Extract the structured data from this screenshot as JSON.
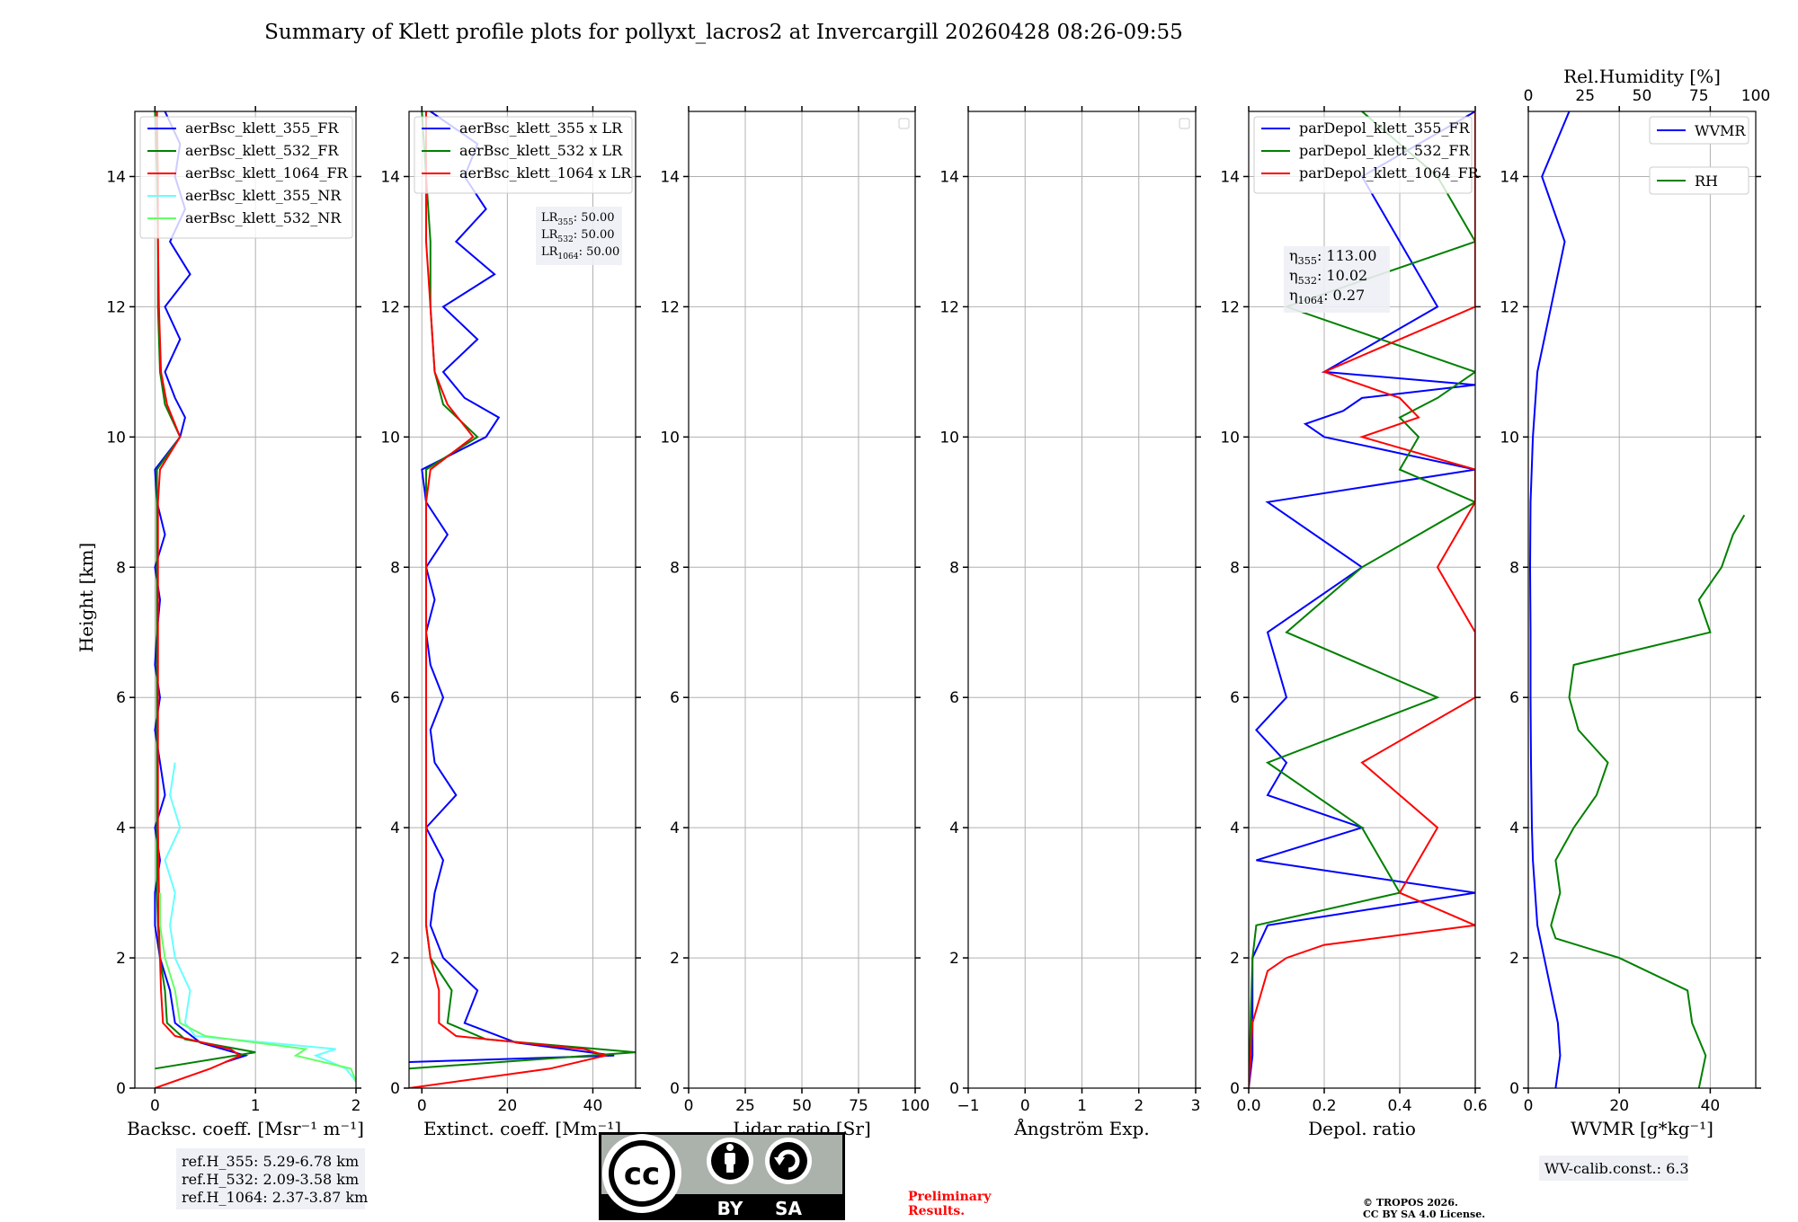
{
  "chart_data": {
    "type": "line",
    "title": "Summary of Klett profile plots for pollyxt_lacros2 at Invercargill 20260428 08:26-09:55",
    "ylabel": "Height [km]",
    "ylim": [
      0,
      15
    ],
    "yticks": [
      0,
      2,
      4,
      6,
      8,
      10,
      12,
      14
    ],
    "panels": [
      {
        "id": "backscatter",
        "xlabel": "Backsc. coeff. [Msr⁻¹ m⁻¹]",
        "xlim": [
          -0.2,
          2
        ],
        "xticks": [
          0,
          1,
          2
        ],
        "legend_position": "upper-left",
        "series": [
          {
            "name": "aerBsc_klett_355_FR",
            "color": "#0000ff",
            "h": [
              0.4,
              0.5,
              0.7,
              1.0,
              1.5,
              2.0,
              2.5,
              3.0,
              3.5,
              4.0,
              4.5,
              5.0,
              5.5,
              6.0,
              6.5,
              7.0,
              7.5,
              8.0,
              8.5,
              9.0,
              9.5,
              10.0,
              10.3,
              10.6,
              11.0,
              11.5,
              12.0,
              12.5,
              13.0,
              13.5,
              14.0,
              14.5,
              15.0
            ],
            "v": [
              0.7,
              0.9,
              0.45,
              0.2,
              0.15,
              0.05,
              0.0,
              0.0,
              0.05,
              0.0,
              0.1,
              0.05,
              0.0,
              0.05,
              0.0,
              0.02,
              0.05,
              0.0,
              0.1,
              0.02,
              0.0,
              0.25,
              0.3,
              0.2,
              0.1,
              0.25,
              0.1,
              0.35,
              0.15,
              0.3,
              0.2,
              0.25,
              0.1
            ]
          },
          {
            "name": "aerBsc_klett_532_FR",
            "color": "#008000",
            "h": [
              0.3,
              0.55,
              0.75,
              1.0,
              1.5,
              2.0,
              2.5,
              3.0,
              4.0,
              5.0,
              6.0,
              7.0,
              8.0,
              9.0,
              9.5,
              10.0,
              10.5,
              11.0,
              12.0,
              13.0,
              14.0,
              15.0
            ],
            "v": [
              0.0,
              1.0,
              0.3,
              0.12,
              0.1,
              0.05,
              0.03,
              0.02,
              0.02,
              0.02,
              0.02,
              0.02,
              0.02,
              0.02,
              0.02,
              0.25,
              0.1,
              0.05,
              0.03,
              0.03,
              0.02,
              0.0
            ]
          },
          {
            "name": "aerBsc_klett_1064_FR",
            "color": "#ff0000",
            "h": [
              0.0,
              0.3,
              0.5,
              0.6,
              0.8,
              1.0,
              1.5,
              2.0,
              2.5,
              3.0,
              4.0,
              5.0,
              6.0,
              7.0,
              8.0,
              9.0,
              9.5,
              10.0,
              10.5,
              11.0,
              12.0,
              13.0,
              14.0,
              15.0
            ],
            "v": [
              0.0,
              0.55,
              0.85,
              0.75,
              0.2,
              0.08,
              0.06,
              0.05,
              0.04,
              0.04,
              0.03,
              0.03,
              0.03,
              0.03,
              0.03,
              0.03,
              0.05,
              0.25,
              0.12,
              0.06,
              0.04,
              0.03,
              0.03,
              0.02
            ]
          },
          {
            "name": "aerBsc_klett_355_NR",
            "color": "#66ffff",
            "h": [
              0.1,
              0.3,
              0.5,
              0.6,
              0.8,
              1.0,
              1.5,
              2.0,
              2.5,
              3.0,
              3.5,
              4.0,
              4.5,
              5.0
            ],
            "v": [
              2.0,
              1.9,
              1.6,
              1.8,
              0.4,
              0.3,
              0.35,
              0.2,
              0.15,
              0.2,
              0.1,
              0.25,
              0.15,
              0.2
            ]
          },
          {
            "name": "aerBsc_klett_532_NR",
            "color": "#66ff66",
            "h": [
              0.1,
              0.3,
              0.5,
              0.6,
              0.8,
              1.0,
              1.5,
              2.0,
              2.5,
              3.0
            ],
            "v": [
              2.0,
              1.95,
              1.4,
              1.5,
              0.5,
              0.25,
              0.2,
              0.1,
              0.05,
              0.05
            ]
          }
        ]
      },
      {
        "id": "extinction",
        "xlabel": "Extinct. coeff. [Mm⁻¹]",
        "xlim": [
          -3,
          50
        ],
        "xticks": [
          0,
          20,
          40
        ],
        "legend_position": "upper-left",
        "annotation": [
          {
            "label": "LR",
            "sub": "355",
            "value": ": 50.00"
          },
          {
            "label": "LR",
            "sub": "532",
            "value": ": 50.00"
          },
          {
            "label": "LR",
            "sub": "1064",
            "value": ": 50.00"
          }
        ],
        "series": [
          {
            "name": "aerBsc_klett_355 x LR",
            "color": "#0000ff",
            "h": [
              0.4,
              0.5,
              0.7,
              1.0,
              1.5,
              2.0,
              2.5,
              3.0,
              3.5,
              4.0,
              4.5,
              5.0,
              5.5,
              6.0,
              6.5,
              7.0,
              7.5,
              8.0,
              8.5,
              9.0,
              9.5,
              10.0,
              10.3,
              10.6,
              11.0,
              11.5,
              12.0,
              12.5,
              13.0,
              13.5,
              14.0,
              14.5,
              15.0
            ],
            "v": [
              -3,
              45,
              22,
              10,
              13,
              5,
              2,
              3,
              5,
              1,
              8,
              3,
              2,
              5,
              2,
              1,
              3,
              1,
              6,
              1,
              0,
              15,
              18,
              10,
              5,
              13,
              5,
              17,
              8,
              15,
              10,
              13,
              2
            ]
          },
          {
            "name": "aerBsc_klett_532 x LR",
            "color": "#008000",
            "h": [
              0.3,
              0.55,
              0.75,
              1.0,
              1.5,
              2.0,
              2.5,
              3.0,
              4.0,
              5.0,
              6.0,
              7.0,
              8.0,
              9.0,
              9.5,
              10.0,
              10.5,
              11.0,
              12.0,
              13.0,
              14.0,
              15.0
            ],
            "v": [
              -3,
              50,
              15,
              6,
              7,
              2,
              1,
              1,
              1,
              1,
              1,
              1,
              1,
              1,
              1,
              13,
              5,
              3,
              2,
              2,
              1,
              0
            ]
          },
          {
            "name": "aerBsc_klett_1064 x LR",
            "color": "#ff0000",
            "h": [
              0.0,
              0.3,
              0.5,
              0.6,
              0.8,
              1.0,
              1.5,
              2.0,
              2.5,
              3.0,
              4.0,
              5.0,
              6.0,
              7.0,
              8.0,
              9.0,
              9.5,
              10.0,
              10.5,
              11.0,
              12.0,
              13.0,
              14.0,
              15.0
            ],
            "v": [
              -3,
              30,
              43,
              38,
              8,
              4,
              4,
              2,
              1,
              1,
              1,
              1,
              1,
              1,
              1,
              1,
              2,
              12,
              6,
              3,
              2,
              1,
              1,
              1
            ]
          }
        ]
      },
      {
        "id": "lidar_ratio",
        "xlabel": "Lidar ratio [Sr]",
        "xlim": [
          0,
          100
        ],
        "xticks": [
          0,
          25,
          50,
          75,
          100
        ],
        "series": []
      },
      {
        "id": "angstrom",
        "xlabel": "Ångström Exp.",
        "xlim": [
          -1,
          3
        ],
        "xticks": [
          -1,
          0,
          1,
          2,
          3
        ],
        "series": []
      },
      {
        "id": "depol",
        "xlabel": "Depol. ratio",
        "xlim": [
          0,
          0.6
        ],
        "xticks": [
          0.0,
          0.2,
          0.4,
          0.6
        ],
        "legend_position": "upper-left",
        "annotation": [
          {
            "label": "η",
            "sub": "355",
            "value": ": 113.00"
          },
          {
            "label": "η",
            "sub": "532",
            "value": ": 10.02"
          },
          {
            "label": "η",
            "sub": "1064",
            "value": ": 0.27"
          }
        ],
        "series": [
          {
            "name": "parDepol_klett_355_FR",
            "color": "#0000ff",
            "h": [
              0.0,
              0.5,
              1.0,
              1.5,
              2.0,
              2.5,
              3.0,
              3.5,
              4.0,
              4.5,
              5.0,
              5.5,
              6.0,
              7.0,
              8.0,
              9.0,
              9.5,
              10.0,
              10.2,
              10.4,
              10.6,
              10.8,
              11.0,
              12.0,
              13.0,
              14.0,
              15.0
            ],
            "v": [
              0.0,
              0.01,
              0.01,
              0.01,
              0.01,
              0.05,
              0.6,
              0.02,
              0.3,
              0.05,
              0.1,
              0.02,
              0.1,
              0.05,
              0.3,
              0.05,
              0.6,
              0.2,
              0.15,
              0.25,
              0.3,
              0.6,
              0.2,
              0.5,
              0.4,
              0.3,
              0.6
            ]
          },
          {
            "name": "parDepol_klett_532_FR",
            "color": "#008000",
            "h": [
              0.0,
              1.0,
              2.0,
              2.5,
              3.0,
              4.0,
              5.0,
              6.0,
              7.0,
              8.0,
              9.0,
              9.5,
              10.0,
              10.3,
              10.6,
              11.0,
              12.0,
              13.0,
              14.0,
              15.0
            ],
            "v": [
              0.0,
              0.005,
              0.01,
              0.02,
              0.4,
              0.3,
              0.05,
              0.5,
              0.1,
              0.3,
              0.6,
              0.4,
              0.45,
              0.4,
              0.5,
              0.6,
              0.1,
              0.6,
              0.5,
              0.3
            ]
          },
          {
            "name": "parDepol_klett_1064_FR",
            "color": "#ff0000",
            "h": [
              0.0,
              1.0,
              1.8,
              2.0,
              2.2,
              2.5,
              3.0,
              4.0,
              5.0,
              6.0,
              7.0,
              8.0,
              9.0,
              9.5,
              10.0,
              10.3,
              10.6,
              11.0,
              12.0,
              13.0,
              14.0,
              15.0
            ],
            "v": [
              0.0,
              0.01,
              0.05,
              0.1,
              0.2,
              0.6,
              0.4,
              0.5,
              0.3,
              0.6,
              0.6,
              0.5,
              0.6,
              0.6,
              0.3,
              0.45,
              0.4,
              0.2,
              0.6,
              0.6,
              0.6,
              0.6
            ]
          }
        ]
      },
      {
        "id": "wvmr",
        "xlabel": "WVMR [g*kg⁻¹]",
        "xlim": [
          0,
          50
        ],
        "xticks": [
          0,
          20,
          40
        ],
        "top_xlabel": "Rel.Humidity [%]",
        "top_xlim": [
          0,
          100
        ],
        "top_xticks": [
          0,
          25,
          50,
          75,
          100
        ],
        "series": [
          {
            "name": "WVMR",
            "color": "#0000ff",
            "axis": "bottom",
            "h": [
              0.0,
              0.5,
              1.0,
              1.5,
              2.0,
              2.5,
              3.0,
              3.5,
              4.0,
              5.0,
              6.0,
              7.0,
              8.0,
              9.0,
              10.0,
              11.0,
              12.0,
              13.0,
              14.0,
              15.0
            ],
            "v": [
              6.0,
              7.0,
              6.5,
              5.0,
              3.5,
              2.0,
              1.5,
              1.0,
              0.8,
              0.6,
              0.5,
              0.5,
              0.4,
              0.5,
              1.0,
              2.0,
              5.0,
              8.0,
              3.0,
              9.0
            ]
          },
          {
            "name": "RH",
            "color": "#008000",
            "axis": "top",
            "h": [
              0.0,
              0.5,
              1.0,
              1.5,
              2.0,
              2.3,
              2.5,
              3.0,
              3.5,
              4.0,
              4.5,
              5.0,
              5.5,
              6.0,
              6.5,
              7.0,
              7.5,
              8.0,
              8.5,
              8.8
            ],
            "v": [
              75,
              78,
              72,
              70,
              40,
              12,
              10,
              14,
              12,
              20,
              30,
              35,
              22,
              18,
              20,
              80,
              75,
              85,
              90,
              95
            ]
          }
        ]
      }
    ]
  },
  "info": {
    "ref_heights": [
      "ref.H_355: 5.29-6.78 km",
      "ref.H_532: 2.09-3.58 km",
      "ref.H_1064: 2.37-3.87 km"
    ],
    "preliminary": [
      "Preliminary",
      "Results."
    ],
    "copyright": [
      "© TROPOS 2026.",
      "CC BY SA 4.0 License."
    ],
    "wv_calib": "WV-calib.const.: 6.3",
    "license_badge": {
      "cc": "cc",
      "by": "BY",
      "sa": "SA"
    }
  },
  "colors": {
    "grid": "#b0b0b0",
    "legend_bg": "#ffffff",
    "note_bg": "#eef0f5"
  }
}
